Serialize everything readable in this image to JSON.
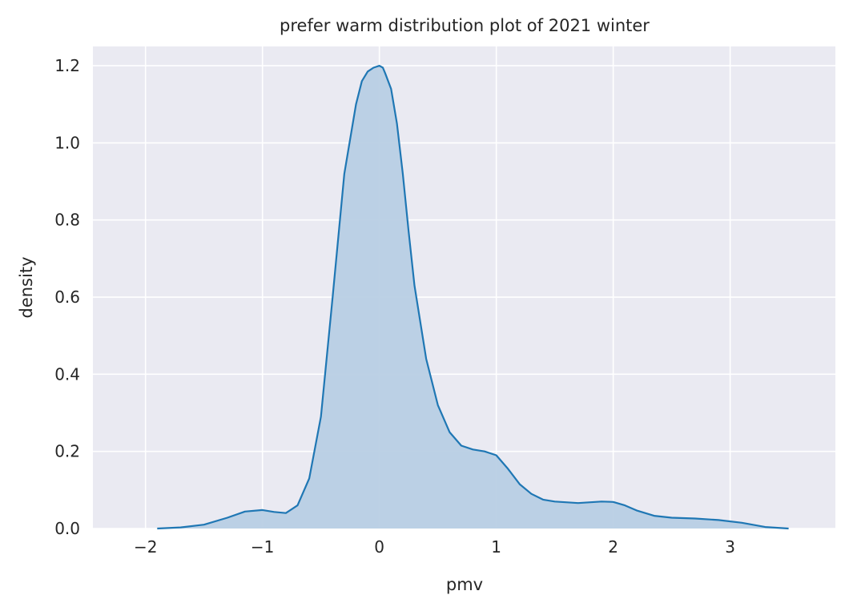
{
  "chart_data": {
    "type": "area",
    "title": "prefer warm distribution plot of 2021 winter",
    "xlabel": "pmv",
    "ylabel": "density",
    "xlim": [
      -2.45,
      3.9
    ],
    "ylim": [
      0,
      1.25
    ],
    "xticks": [
      -2,
      -1,
      0,
      1,
      2,
      3
    ],
    "xtick_labels": [
      "−2",
      "−1",
      "0",
      "1",
      "2",
      "3"
    ],
    "yticks": [
      0.0,
      0.2,
      0.4,
      0.6,
      0.8,
      1.0,
      1.2
    ],
    "ytick_labels": [
      "0.0",
      "0.2",
      "0.4",
      "0.6",
      "0.8",
      "1.0",
      "1.2"
    ],
    "grid": true,
    "background": "#eaeaf2",
    "grid_color": "#ffffff",
    "series": [
      {
        "line_color": "#1f77b4",
        "fill_color": "#b8cfe4",
        "x": [
          -1.9,
          -1.7,
          -1.5,
          -1.3,
          -1.15,
          -1.0,
          -0.9,
          -0.8,
          -0.7,
          -0.6,
          -0.5,
          -0.4,
          -0.3,
          -0.2,
          -0.15,
          -0.1,
          -0.05,
          0.0,
          0.03,
          0.05,
          0.1,
          0.15,
          0.2,
          0.25,
          0.3,
          0.4,
          0.5,
          0.6,
          0.7,
          0.8,
          0.9,
          1.0,
          1.1,
          1.2,
          1.3,
          1.4,
          1.5,
          1.7,
          1.9,
          2.0,
          2.1,
          2.2,
          2.35,
          2.5,
          2.7,
          2.9,
          3.1,
          3.3,
          3.5
        ],
        "y": [
          0.0,
          0.003,
          0.01,
          0.028,
          0.044,
          0.048,
          0.043,
          0.04,
          0.06,
          0.13,
          0.29,
          0.6,
          0.92,
          1.1,
          1.16,
          1.185,
          1.195,
          1.2,
          1.195,
          1.18,
          1.14,
          1.05,
          0.92,
          0.77,
          0.63,
          0.44,
          0.32,
          0.25,
          0.215,
          0.205,
          0.2,
          0.19,
          0.155,
          0.115,
          0.09,
          0.075,
          0.07,
          0.066,
          0.07,
          0.069,
          0.06,
          0.047,
          0.033,
          0.028,
          0.026,
          0.022,
          0.015,
          0.004,
          0.0
        ]
      }
    ]
  }
}
